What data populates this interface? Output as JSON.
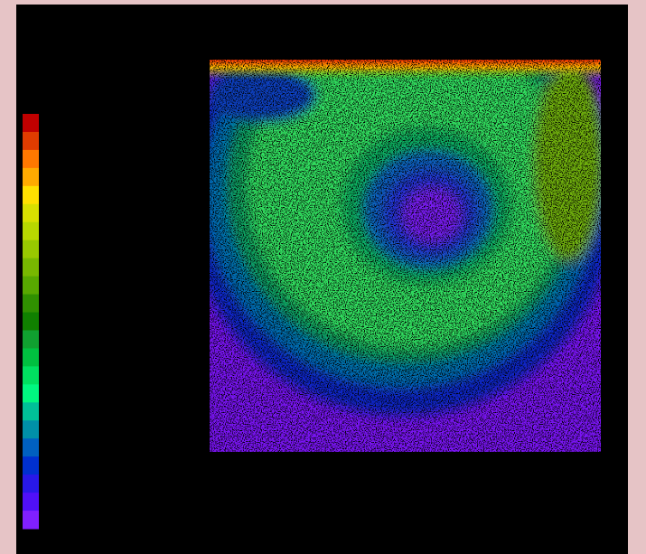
{
  "colorbar": {
    "colors": [
      "#c00000",
      "#e03c00",
      "#ff7800",
      "#ffaa00",
      "#ffe000",
      "#d8e000",
      "#b8d800",
      "#98c800",
      "#78b800",
      "#58a800",
      "#309000",
      "#108000",
      "#10a030",
      "#00c040",
      "#00e060",
      "#00f880",
      "#00c098",
      "#0090a8",
      "#0060c0",
      "#0030d0",
      "#2818e8",
      "#5010f8",
      "#8020ff"
    ]
  }
}
